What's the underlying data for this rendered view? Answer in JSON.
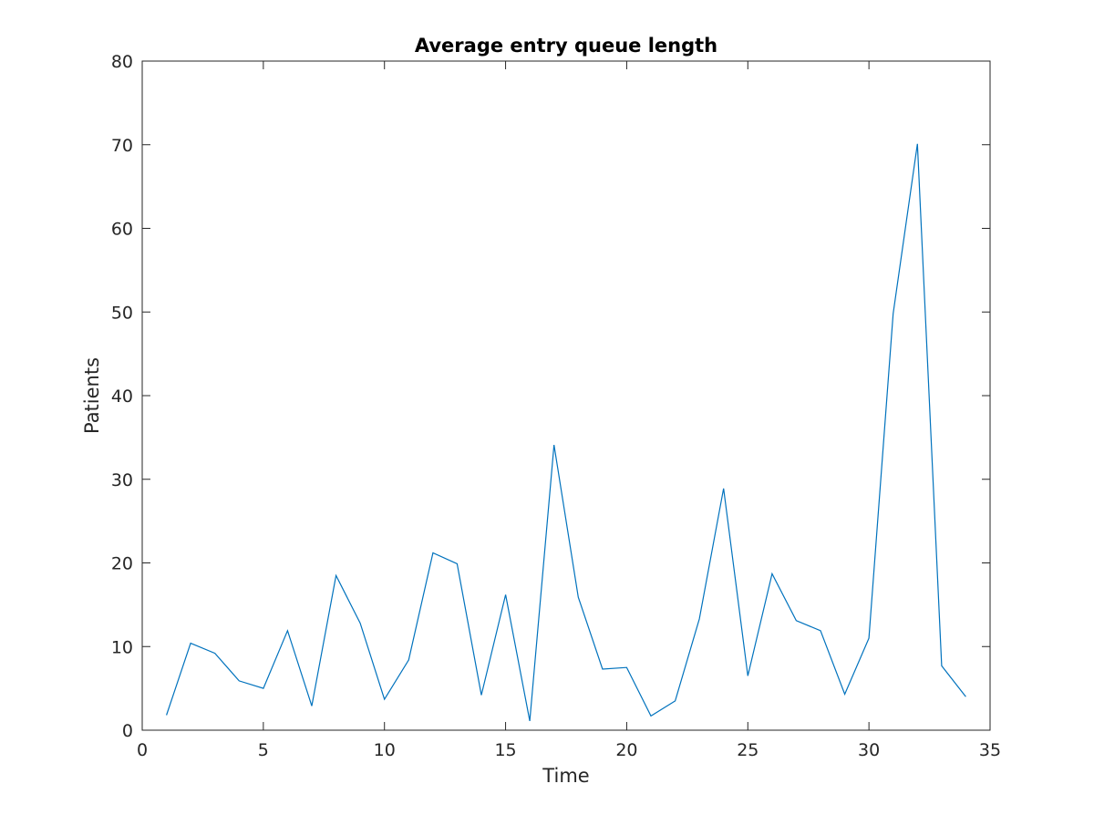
{
  "chart_data": {
    "type": "line",
    "title": "Average entry queue length",
    "xlabel": "Time",
    "ylabel": "Patients",
    "xlim": [
      0,
      35
    ],
    "ylim": [
      0,
      80
    ],
    "xticks": [
      0,
      5,
      10,
      15,
      20,
      25,
      30,
      35
    ],
    "yticks": [
      0,
      10,
      20,
      30,
      40,
      50,
      60,
      70,
      80
    ],
    "grid": false,
    "legend": "none",
    "line_color": "#0072BD",
    "axis_color": "#262626",
    "x": [
      1,
      2,
      3,
      4,
      5,
      6,
      7,
      8,
      9,
      10,
      11,
      12,
      13,
      14,
      15,
      16,
      17,
      18,
      19,
      20,
      21,
      22,
      23,
      24,
      25,
      26,
      27,
      28,
      29,
      30,
      31,
      32,
      33,
      34
    ],
    "series": [
      {
        "values": [
          1.8,
          10.4,
          9.2,
          5.9,
          5.0,
          11.9,
          2.9,
          18.5,
          12.8,
          3.7,
          8.4,
          21.2,
          19.9,
          4.2,
          16.2,
          1.1,
          34.1,
          15.9,
          7.3,
          7.5,
          1.7,
          3.5,
          13.3,
          28.9,
          6.5,
          18.7,
          13.1,
          11.9,
          4.3,
          11.0,
          49.8,
          70.1,
          7.7,
          4.0
        ]
      }
    ]
  }
}
